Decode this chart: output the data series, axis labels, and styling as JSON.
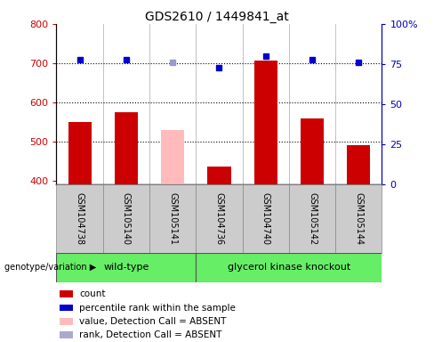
{
  "title": "GDS2610 / 1449841_at",
  "samples": [
    "GSM104738",
    "GSM105140",
    "GSM105141",
    "GSM104736",
    "GSM104740",
    "GSM105142",
    "GSM105144"
  ],
  "bar_values": [
    550,
    575,
    530,
    437,
    707,
    560,
    490
  ],
  "bar_colors": [
    "#cc0000",
    "#cc0000",
    "#ffbbbb",
    "#cc0000",
    "#cc0000",
    "#cc0000",
    "#cc0000"
  ],
  "percentile_values": [
    78,
    78,
    76,
    73,
    80,
    78,
    76
  ],
  "percentile_colors": [
    "#0000cc",
    "#0000cc",
    "#9999cc",
    "#0000cc",
    "#0000cc",
    "#0000cc",
    "#0000cc"
  ],
  "ylim_left": [
    390,
    800
  ],
  "ylim_right": [
    0,
    100
  ],
  "yticks_left": [
    400,
    500,
    600,
    700,
    800
  ],
  "yticks_right": [
    0,
    25,
    50,
    75,
    100
  ],
  "right_tick_labels": [
    "0",
    "25",
    "50",
    "75",
    "100%"
  ],
  "hlines": [
    500,
    600,
    700
  ],
  "group1_label": "wild-type",
  "group2_label": "glycerol kinase knockout",
  "group1_indices": [
    0,
    1,
    2
  ],
  "group2_indices": [
    3,
    4,
    5,
    6
  ],
  "genotype_label": "genotype/variation",
  "legend_items": [
    {
      "label": "count",
      "color": "#cc0000"
    },
    {
      "label": "percentile rank within the sample",
      "color": "#0000cc"
    },
    {
      "label": "value, Detection Call = ABSENT",
      "color": "#ffbbbb"
    },
    {
      "label": "rank, Detection Call = ABSENT",
      "color": "#aaaacc"
    }
  ],
  "bg_color": "#cccccc",
  "group_bg_color": "#66ee66",
  "bar_width": 0.5,
  "fig_width": 4.88,
  "fig_height": 3.84,
  "dpi": 100
}
